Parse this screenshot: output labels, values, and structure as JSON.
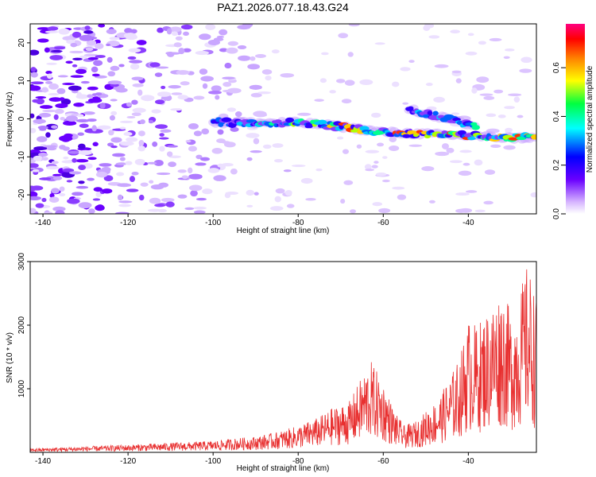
{
  "title": "PAZ1.2026.077.18.43.G24",
  "chart_data": [
    {
      "type": "heatmap",
      "title": "PAZ1.2026.077.18.43.G24",
      "xlabel": "Height of straight line (km)",
      "ylabel": "Frequency (Hz)",
      "xlim": [
        -143,
        -24
      ],
      "ylim": [
        -25,
        25
      ],
      "xticks": [
        -140,
        -120,
        -100,
        -80,
        -60,
        -40
      ],
      "yticks": [
        -20,
        -10,
        0,
        10,
        20
      ],
      "colorbar": {
        "label": "Normalized spectral amplitude",
        "range": [
          0,
          0.78
        ],
        "ticks": [
          0.0,
          0.2,
          0.4,
          0.6
        ]
      },
      "ridges": [
        {
          "name": "main",
          "x": [
            -100,
            -90,
            -80,
            -70,
            -60,
            -50,
            -40,
            -30,
            -24
          ],
          "freq": [
            -1,
            -1,
            -1,
            -2,
            -3.5,
            -4,
            -4.5,
            -5,
            -5
          ]
        },
        {
          "name": "upper",
          "x": [
            -54,
            -45,
            -38
          ],
          "freq": [
            2.5,
            0,
            -2
          ]
        }
      ]
    },
    {
      "type": "line",
      "xlabel": "Height of straight line (km)",
      "ylabel": "SNR (10 * v/v)",
      "xlim": [
        -143,
        -24
      ],
      "ylim": [
        0,
        3000
      ],
      "xticks": [
        -140,
        -120,
        -100,
        -80,
        -60,
        -40
      ],
      "yticks": [
        1000,
        2000,
        3000
      ],
      "series_color": "#e83030",
      "envelope": {
        "x": [
          -143,
          -120,
          -100,
          -95,
          -90,
          -85,
          -80,
          -75,
          -72,
          -68,
          -65,
          -63,
          -60,
          -57,
          -55,
          -52,
          -50,
          -47,
          -45,
          -42,
          -40,
          -38,
          -35,
          -32,
          -30,
          -28,
          -26,
          -24
        ],
        "snr": [
          60,
          120,
          180,
          220,
          250,
          320,
          420,
          560,
          700,
          800,
          1200,
          1450,
          1100,
          600,
          420,
          500,
          650,
          850,
          1100,
          1500,
          2100,
          2000,
          2300,
          2600,
          2200,
          2500,
          3000,
          2400
        ]
      }
    }
  ]
}
